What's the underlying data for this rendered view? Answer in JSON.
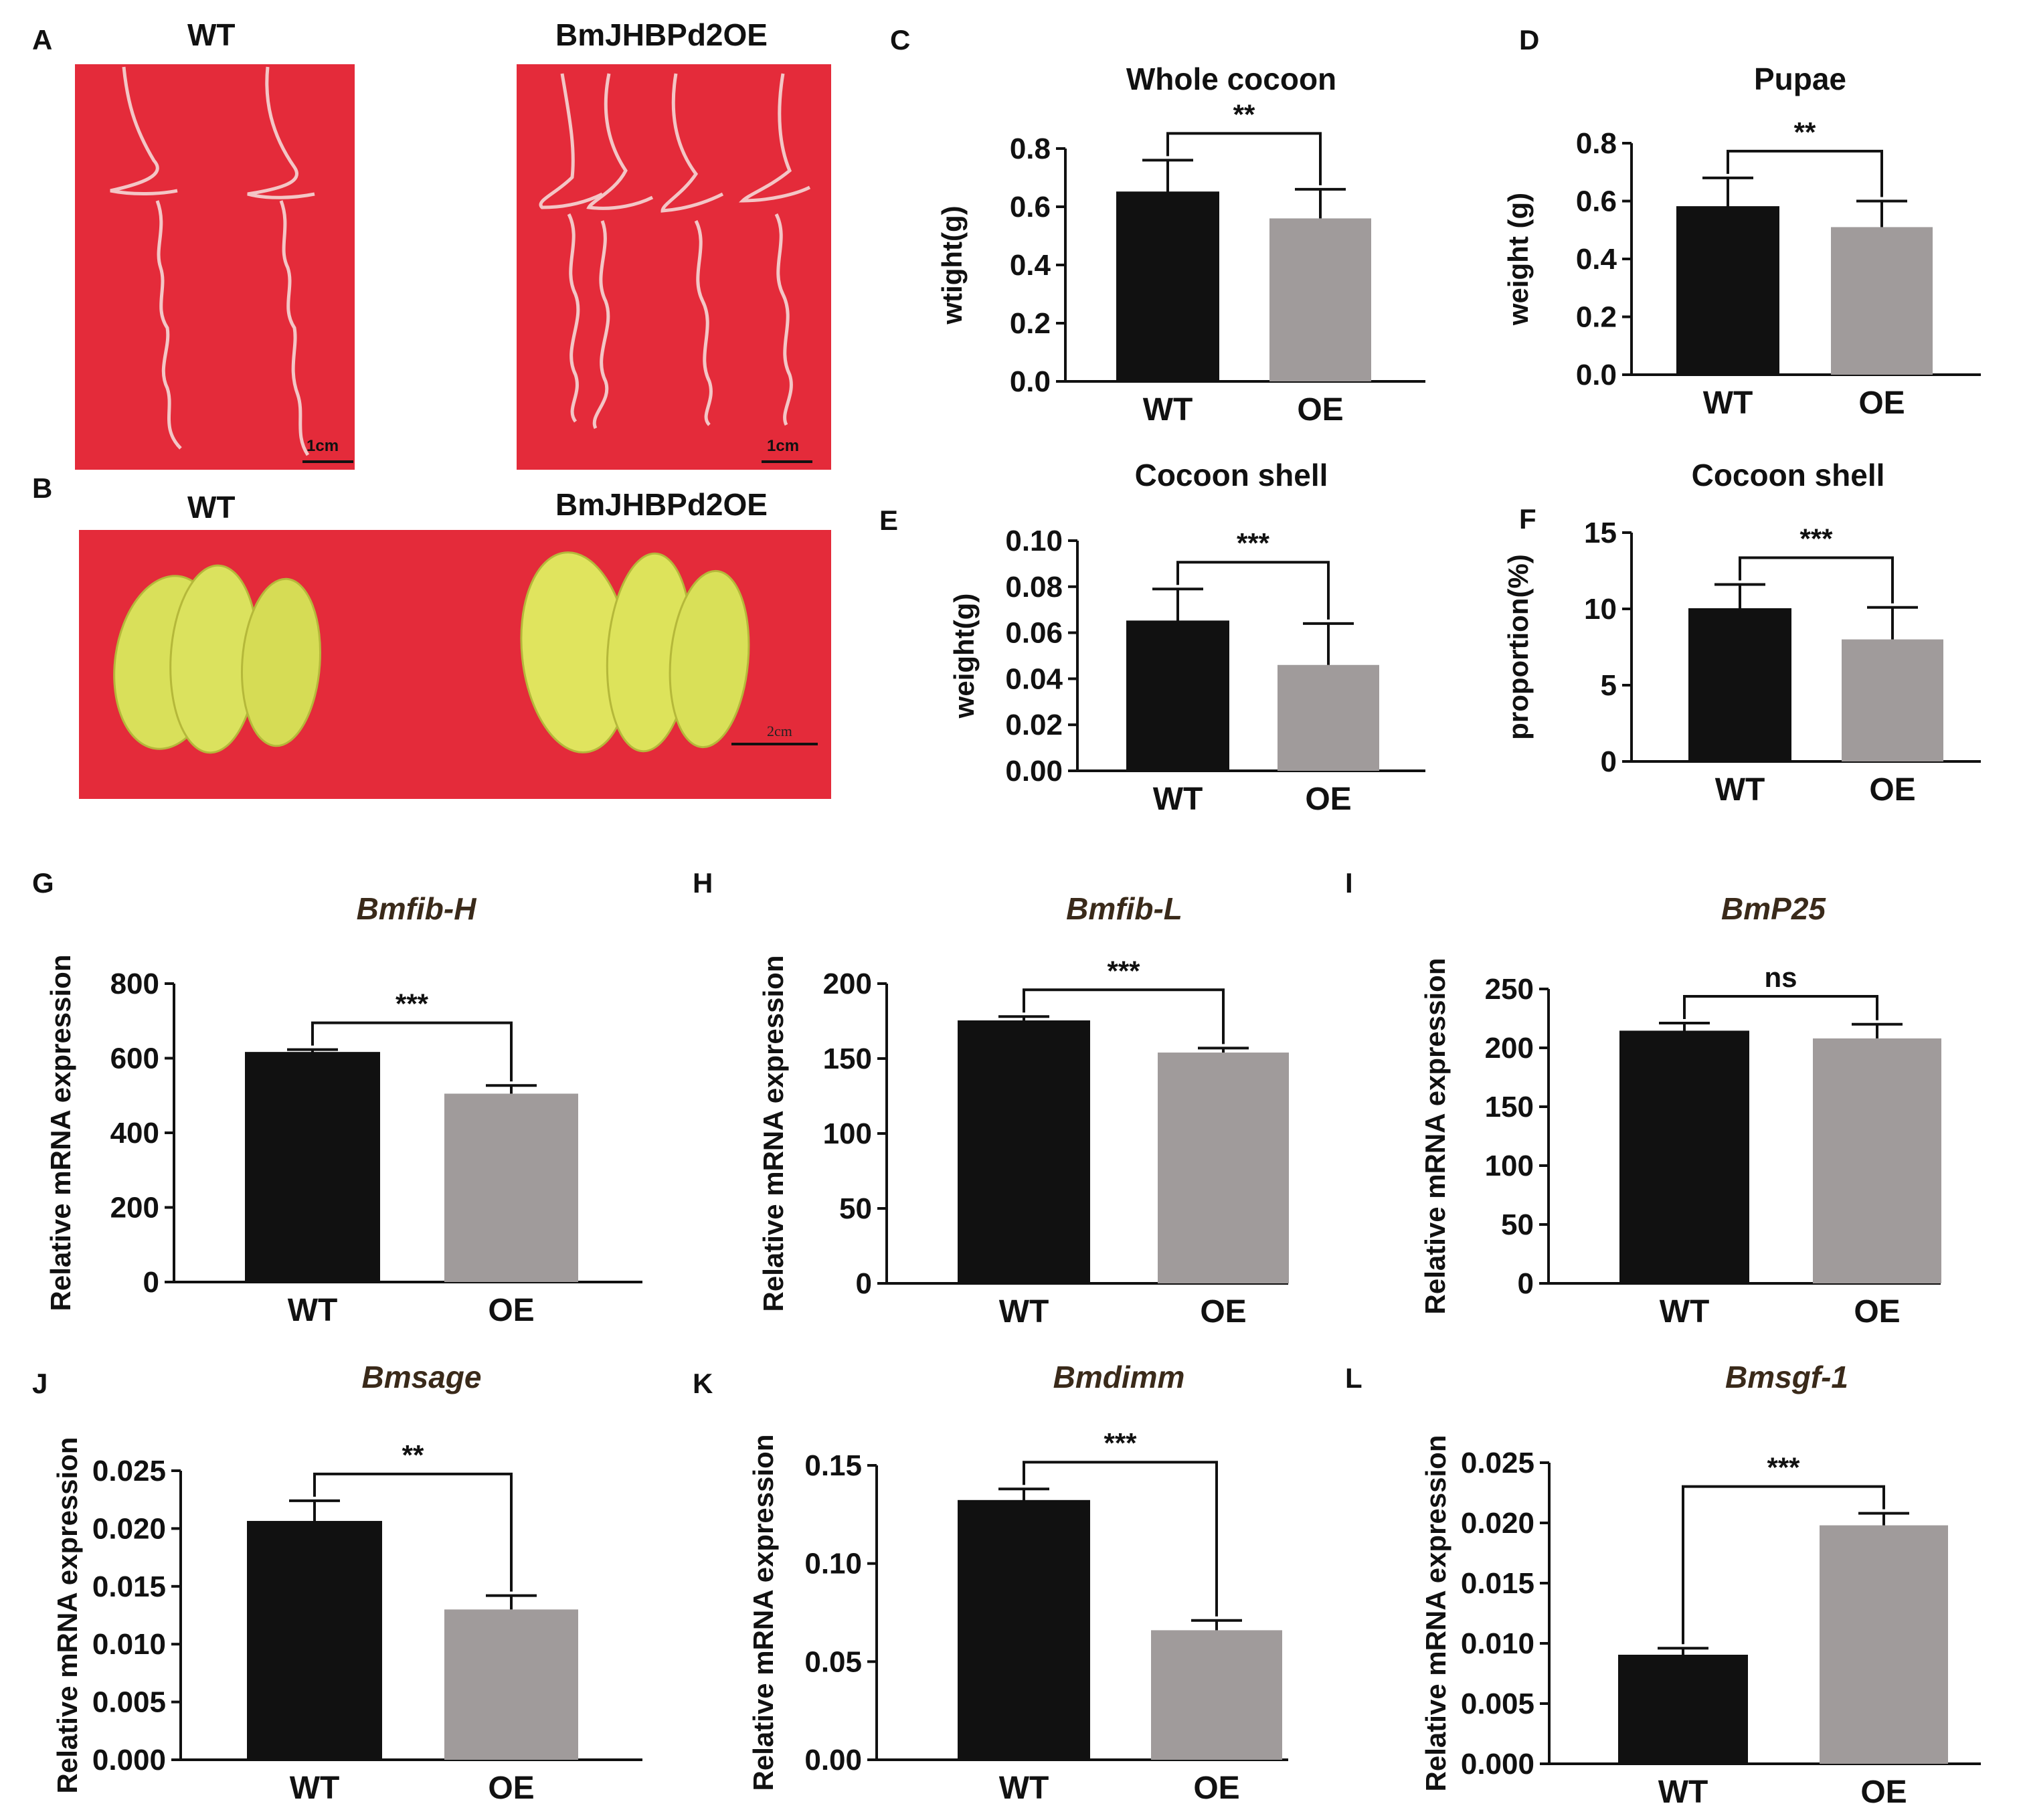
{
  "colors": {
    "wt": "#111111",
    "oe": "#a09b9b",
    "photo_bg": "#e42b3a",
    "cocoon": "#d9e05a",
    "silk": "#f4c8c8"
  },
  "photos": {
    "A": {
      "letter": "A",
      "left_label": "WT",
      "right_label": "BmJHBPd2OE",
      "scale_left": "1cm",
      "scale_right": "1cm"
    },
    "B": {
      "letter": "B",
      "left_label": "WT",
      "right_label": "BmJHBPd2OE",
      "scale": "2cm"
    }
  },
  "chart_data": [
    {
      "id": "C",
      "letter": "C",
      "type": "bar",
      "title": "Whole cocoon",
      "italic": false,
      "ylabel": "wtight(g)",
      "categories": [
        "WT",
        "OE"
      ],
      "values": [
        0.65,
        0.56
      ],
      "errors": [
        0.11,
        0.1
      ],
      "ylim": [
        0,
        0.8
      ],
      "ticks": [
        0.0,
        0.2,
        0.4,
        0.6,
        0.8
      ],
      "tick_labels": [
        "0.0",
        "0.2",
        "0.4",
        "0.6",
        "0.8"
      ],
      "significance": "**"
    },
    {
      "id": "D",
      "letter": "D",
      "type": "bar",
      "title": "Pupae",
      "italic": false,
      "ylabel": "weight (g)",
      "categories": [
        "WT",
        "OE"
      ],
      "values": [
        0.58,
        0.51
      ],
      "errors": [
        0.1,
        0.09
      ],
      "ylim": [
        0,
        0.8
      ],
      "ticks": [
        0.0,
        0.2,
        0.4,
        0.6,
        0.8
      ],
      "tick_labels": [
        "0.0",
        "0.2",
        "0.4",
        "0.6",
        "0.8"
      ],
      "significance": "**"
    },
    {
      "id": "E",
      "letter": "E",
      "type": "bar",
      "title": "Cocoon shell",
      "italic": false,
      "ylabel": "weight(g)",
      "categories": [
        "WT",
        "OE"
      ],
      "values": [
        0.065,
        0.046
      ],
      "errors": [
        0.014,
        0.018
      ],
      "ylim": [
        0,
        0.1
      ],
      "ticks": [
        0,
        0.02,
        0.04,
        0.06,
        0.08,
        0.1
      ],
      "tick_labels": [
        "0.00",
        "0.02",
        "0.04",
        "0.06",
        "0.08",
        "0.10"
      ],
      "significance": "***"
    },
    {
      "id": "F",
      "letter": "F",
      "type": "bar",
      "title": "Cocoon shell",
      "italic": false,
      "ylabel": "proportion(%)",
      "categories": [
        "WT",
        "OE"
      ],
      "values": [
        10.0,
        8.0
      ],
      "errors": [
        1.6,
        2.1
      ],
      "ylim": [
        0,
        15
      ],
      "ticks": [
        0,
        5,
        10,
        15
      ],
      "tick_labels": [
        "0",
        "5",
        "10",
        "15"
      ],
      "significance": "***"
    },
    {
      "id": "G",
      "letter": "G",
      "type": "bar",
      "title": "Bmfib-H",
      "italic": true,
      "ylabel": "Relative mRNA expression",
      "categories": [
        "WT",
        "OE"
      ],
      "values": [
        615,
        505
      ],
      "errors": [
        8,
        22
      ],
      "ylim": [
        0,
        800
      ],
      "ticks": [
        0,
        200,
        400,
        600,
        800
      ],
      "tick_labels": [
        "0",
        "200",
        "400",
        "600",
        "800"
      ],
      "significance": "***"
    },
    {
      "id": "H",
      "letter": "H",
      "type": "bar",
      "title": "Bmfib-L",
      "italic": true,
      "ylabel": "Relative mRNA expression",
      "categories": [
        "WT",
        "OE"
      ],
      "values": [
        175,
        154
      ],
      "errors": [
        3,
        3
      ],
      "ylim": [
        0,
        200
      ],
      "ticks": [
        0,
        50,
        100,
        150,
        200
      ],
      "tick_labels": [
        "0",
        "50",
        "100",
        "150",
        "200"
      ],
      "significance": "***"
    },
    {
      "id": "I",
      "letter": "I",
      "type": "bar",
      "title": "BmP25",
      "italic": true,
      "ylabel": "Relative mRNA expression",
      "categories": [
        "WT",
        "OE"
      ],
      "values": [
        214,
        208
      ],
      "errors": [
        7,
        12
      ],
      "ylim": [
        0,
        250
      ],
      "ticks": [
        0,
        50,
        100,
        150,
        200,
        250
      ],
      "tick_labels": [
        "0",
        "50",
        "100",
        "150",
        "200",
        "250"
      ],
      "significance": "ns"
    },
    {
      "id": "J",
      "letter": "J",
      "type": "bar",
      "title": "Bmsage",
      "italic": true,
      "ylabel": "Relative mRNA expression",
      "categories": [
        "WT",
        "OE"
      ],
      "values": [
        0.0206,
        0.013
      ],
      "errors": [
        0.0018,
        0.0012
      ],
      "ylim": [
        0,
        0.025
      ],
      "ticks": [
        0,
        0.005,
        0.01,
        0.015,
        0.02,
        0.025
      ],
      "tick_labels": [
        "0.000",
        "0.005",
        "0.010",
        "0.015",
        "0.020",
        "0.025"
      ],
      "significance": "**"
    },
    {
      "id": "K",
      "letter": "K",
      "type": "bar",
      "title": "Bmdimm",
      "italic": true,
      "ylabel": "Relative mRNA expression",
      "categories": [
        "WT",
        "OE"
      ],
      "values": [
        0.132,
        0.066
      ],
      "errors": [
        0.006,
        0.005
      ],
      "ylim": [
        0,
        0.15
      ],
      "ticks": [
        0,
        0.05,
        0.1,
        0.15
      ],
      "tick_labels": [
        "0.00",
        "0.05",
        "0.10",
        "0.15"
      ],
      "significance": "***"
    },
    {
      "id": "L",
      "letter": "L",
      "type": "bar",
      "title": "Bmsgf-1",
      "italic": true,
      "ylabel": "Relative mRNA expression",
      "categories": [
        "WT",
        "OE"
      ],
      "values": [
        0.009,
        0.0198
      ],
      "errors": [
        0.0006,
        0.001
      ],
      "ylim": [
        0,
        0.025
      ],
      "ticks": [
        0,
        0.005,
        0.01,
        0.015,
        0.02,
        0.025
      ],
      "tick_labels": [
        "0.000",
        "0.005",
        "0.010",
        "0.015",
        "0.020",
        "0.025"
      ],
      "significance": "***"
    }
  ]
}
